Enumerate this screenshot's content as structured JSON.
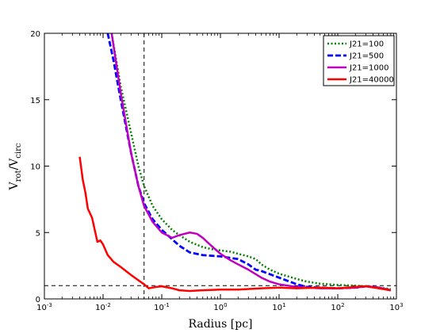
{
  "chart_data": {
    "type": "line",
    "xscale": "log",
    "xlim": [
      0.001,
      1000
    ],
    "ylim": [
      0,
      20
    ],
    "xlabel": "Radius [pc]",
    "ylabel": {
      "main": "V",
      "sub1": "rot",
      "sep": "/V",
      "sub2": "circ"
    },
    "xticks": [
      {
        "value": 0.001,
        "base": "10",
        "exp": "-3"
      },
      {
        "value": 0.01,
        "base": "10",
        "exp": "-2"
      },
      {
        "value": 0.1,
        "base": "10",
        "exp": "-1"
      },
      {
        "value": 1,
        "base": "10",
        "exp": "0"
      },
      {
        "value": 10,
        "base": "10",
        "exp": "1"
      },
      {
        "value": 100,
        "base": "10",
        "exp": "2"
      },
      {
        "value": 1000,
        "base": "10",
        "exp": "3"
      }
    ],
    "yticks": [
      0,
      5,
      10,
      15,
      20
    ],
    "legend_position": "top-right",
    "reference_lines": [
      {
        "orientation": "vertical",
        "value": 0.05
      },
      {
        "orientation": "horizontal",
        "value": 1
      }
    ],
    "series": [
      {
        "name": "J21=100",
        "color": "#008000",
        "dash": "dotted",
        "points": [
          [
            0.014,
            20
          ],
          [
            0.02,
            16
          ],
          [
            0.03,
            12.5
          ],
          [
            0.04,
            10
          ],
          [
            0.05,
            8.5
          ],
          [
            0.07,
            7
          ],
          [
            0.1,
            6
          ],
          [
            0.15,
            5.2
          ],
          [
            0.2,
            4.8
          ],
          [
            0.3,
            4.3
          ],
          [
            0.5,
            3.9
          ],
          [
            0.7,
            3.75
          ],
          [
            1,
            3.65
          ],
          [
            1.5,
            3.55
          ],
          [
            2,
            3.4
          ],
          [
            3,
            3.2
          ],
          [
            4,
            3
          ],
          [
            5,
            2.6
          ],
          [
            7,
            2.2
          ],
          [
            10,
            1.9
          ],
          [
            20,
            1.5
          ],
          [
            30,
            1.3
          ],
          [
            50,
            1.15
          ],
          [
            100,
            1.05
          ],
          [
            200,
            1
          ],
          [
            300,
            0.95
          ],
          [
            500,
            0.85
          ],
          [
            800,
            0.75
          ]
        ]
      },
      {
        "name": "J21=500",
        "color": "#0000ff",
        "dash": "dashed",
        "points": [
          [
            0.012,
            20
          ],
          [
            0.015,
            18
          ],
          [
            0.02,
            15
          ],
          [
            0.03,
            11
          ],
          [
            0.04,
            8.5
          ],
          [
            0.05,
            7.2
          ],
          [
            0.07,
            6
          ],
          [
            0.1,
            5.2
          ],
          [
            0.15,
            4.5
          ],
          [
            0.2,
            4
          ],
          [
            0.3,
            3.5
          ],
          [
            0.5,
            3.3
          ],
          [
            1,
            3.2
          ],
          [
            2,
            3
          ],
          [
            3,
            2.6
          ],
          [
            4,
            2.2
          ],
          [
            5,
            2.1
          ],
          [
            10,
            1.6
          ],
          [
            20,
            1.1
          ],
          [
            30,
            0.9
          ],
          [
            50,
            0.85
          ],
          [
            100,
            0.8
          ],
          [
            200,
            0.85
          ],
          [
            300,
            0.95
          ],
          [
            500,
            0.85
          ],
          [
            800,
            0.65
          ]
        ]
      },
      {
        "name": "J21=1000",
        "color": "#bf00bf",
        "dash": "solid",
        "points": [
          [
            0.014,
            20
          ],
          [
            0.02,
            15.5
          ],
          [
            0.03,
            11
          ],
          [
            0.04,
            8.5
          ],
          [
            0.05,
            7
          ],
          [
            0.07,
            5.8
          ],
          [
            0.1,
            5
          ],
          [
            0.15,
            4.6
          ],
          [
            0.2,
            4.8
          ],
          [
            0.3,
            5
          ],
          [
            0.4,
            4.9
          ],
          [
            0.5,
            4.6
          ],
          [
            0.7,
            4
          ],
          [
            1,
            3.4
          ],
          [
            1.5,
            2.9
          ],
          [
            2,
            2.6
          ],
          [
            3,
            2.2
          ],
          [
            5,
            1.6
          ],
          [
            7,
            1.3
          ],
          [
            10,
            1.1
          ],
          [
            20,
            0.9
          ],
          [
            50,
            0.8
          ],
          [
            100,
            0.8
          ],
          [
            200,
            0.85
          ],
          [
            300,
            0.95
          ],
          [
            500,
            0.85
          ],
          [
            800,
            0.65
          ]
        ]
      },
      {
        "name": "J21=40000",
        "color": "#ff0000",
        "dash": "solid",
        "points": [
          [
            0.004,
            10.7
          ],
          [
            0.0045,
            9
          ],
          [
            0.005,
            8
          ],
          [
            0.0055,
            6.8
          ],
          [
            0.0065,
            6.1
          ],
          [
            0.008,
            4.3
          ],
          [
            0.009,
            4.4
          ],
          [
            0.01,
            4.1
          ],
          [
            0.012,
            3.3
          ],
          [
            0.015,
            2.8
          ],
          [
            0.02,
            2.4
          ],
          [
            0.03,
            1.8
          ],
          [
            0.04,
            1.4
          ],
          [
            0.05,
            1.1
          ],
          [
            0.06,
            0.8
          ],
          [
            0.08,
            0.9
          ],
          [
            0.1,
            0.95
          ],
          [
            0.15,
            0.8
          ],
          [
            0.2,
            0.65
          ],
          [
            0.3,
            0.6
          ],
          [
            0.5,
            0.65
          ],
          [
            1,
            0.7
          ],
          [
            2,
            0.7
          ],
          [
            5,
            0.8
          ],
          [
            10,
            0.85
          ],
          [
            20,
            0.8
          ],
          [
            50,
            0.85
          ],
          [
            100,
            0.8
          ],
          [
            200,
            0.9
          ],
          [
            300,
            0.95
          ],
          [
            500,
            0.8
          ],
          [
            800,
            0.65
          ]
        ]
      }
    ]
  }
}
